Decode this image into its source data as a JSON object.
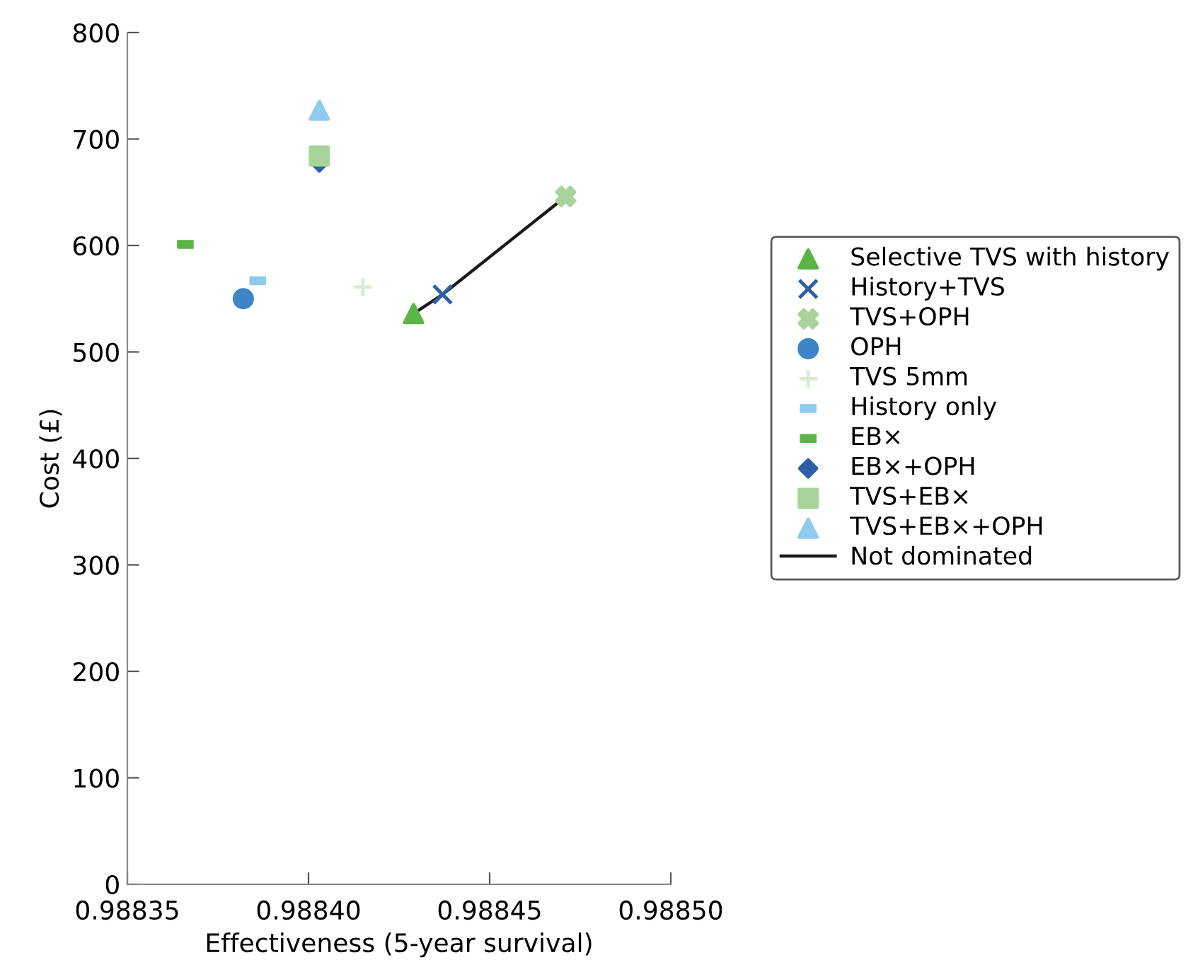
{
  "chart_data": {
    "type": "scatter",
    "xlabel": "Effectiveness (5-year survival)",
    "ylabel": "Cost (£)",
    "xlim": [
      0.98835,
      0.9885
    ],
    "xticks": [
      0.98835,
      {
        "value": 0.9884,
        "label": "0.98840"
      },
      0.98845,
      {
        "value": 0.9885,
        "label": "0.98850"
      }
    ],
    "ylim": [
      0,
      800
    ],
    "yticks": [
      0,
      100,
      200,
      300,
      400,
      500,
      600,
      700,
      800
    ],
    "grid": false,
    "legend": "right",
    "series": [
      {
        "name": "Selective TVS with history",
        "color": "#5ab446",
        "marker": "triangle",
        "x": [
          0.988429
        ],
        "values": [
          536
        ]
      },
      {
        "name": "History+TVS",
        "color": "#2e5fa8",
        "marker": "x",
        "x": [
          0.988437
        ],
        "values": [
          554
        ]
      },
      {
        "name": "TVS+OPH",
        "color": "#a8d39a",
        "marker": "cross",
        "x": [
          0.988471
        ],
        "values": [
          646
        ]
      },
      {
        "name": "OPH",
        "color": "#3d85c6",
        "marker": "circle",
        "x": [
          0.988382
        ],
        "values": [
          550
        ]
      },
      {
        "name": "TVS 5mm",
        "color": "#d8ecd2",
        "marker": "plus",
        "x": [
          0.988415
        ],
        "values": [
          561
        ]
      },
      {
        "name": "History only",
        "color": "#8ecbee",
        "x": [
          0.988386
        ],
        "values": [
          567
        ]
      },
      {
        "name": "EB×",
        "color": "#5ab446",
        "x": [
          0.988366
        ],
        "values": [
          601
        ]
      },
      {
        "name": "EB×+OPH",
        "color": "#2e5fa8",
        "marker": "diamond",
        "x": [
          0.988403
        ],
        "values": [
          678
        ]
      },
      {
        "name": "TVS+EB×",
        "color": "#a8d39a",
        "marker": "square",
        "x": [
          0.988403
        ],
        "values": [
          684
        ]
      },
      {
        "name": "TVS+EB×+OPH",
        "color": "#8ecbee",
        "marker": "triangle",
        "x": [
          0.988403
        ],
        "values": [
          727
        ]
      },
      {
        "name": "Not dominated",
        "type": "line",
        "color": "#1a1a1a",
        "marker": "none",
        "line_style": "solid",
        "x": [
          0.988429,
          0.988437,
          0.988471
        ],
        "values": [
          536,
          554,
          646
        ]
      }
    ]
  }
}
